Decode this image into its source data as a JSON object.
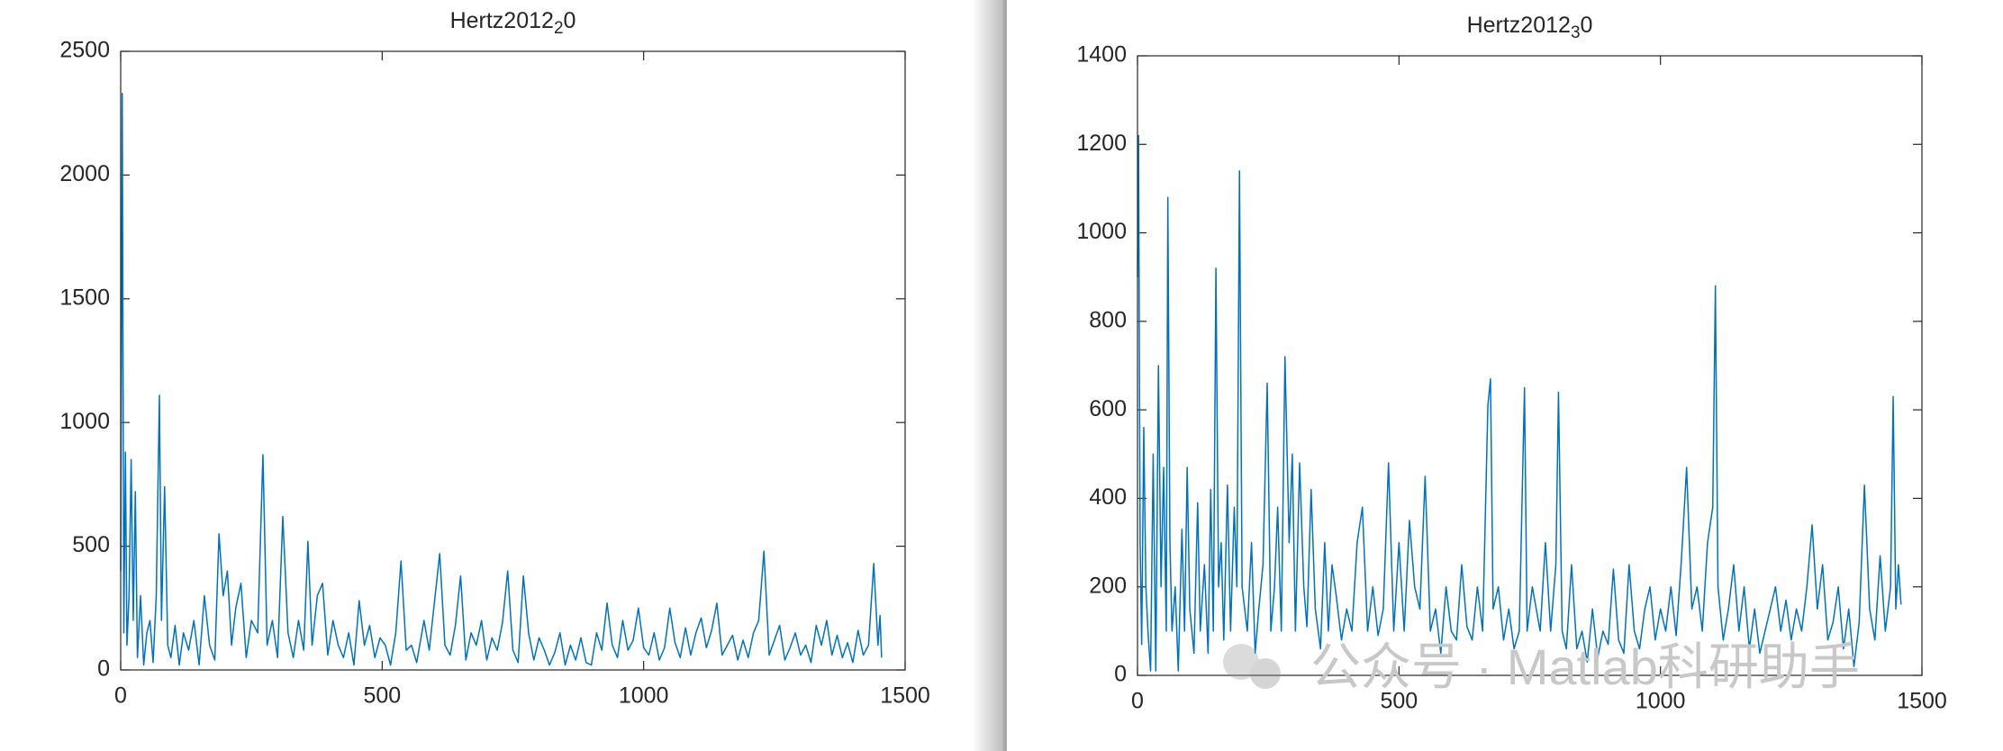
{
  "chart_data": [
    {
      "type": "line",
      "title": [
        "Hertz2012",
        "2",
        "0"
      ],
      "color": "#0072bd",
      "xlim": [
        0,
        1500
      ],
      "xticks": [
        0,
        500,
        1000,
        1500
      ],
      "ylim": [
        0,
        2500
      ],
      "yticks": [
        0,
        500,
        1000,
        1500,
        2000,
        2500
      ],
      "x": [
        0,
        3,
        6,
        9,
        12,
        16,
        20,
        24,
        28,
        32,
        38,
        44,
        50,
        56,
        62,
        68,
        74,
        78,
        84,
        90,
        96,
        104,
        112,
        120,
        130,
        140,
        150,
        160,
        170,
        180,
        188,
        196,
        204,
        212,
        220,
        230,
        240,
        250,
        262,
        272,
        280,
        290,
        300,
        310,
        320,
        330,
        340,
        350,
        358,
        366,
        376,
        386,
        396,
        406,
        416,
        426,
        436,
        446,
        456,
        466,
        476,
        486,
        496,
        506,
        516,
        526,
        536,
        546,
        556,
        566,
        580,
        590,
        610,
        620,
        630,
        640,
        650,
        660,
        670,
        680,
        690,
        700,
        710,
        720,
        730,
        740,
        750,
        760,
        770,
        780,
        790,
        800,
        810,
        820,
        830,
        840,
        850,
        860,
        870,
        880,
        890,
        900,
        910,
        920,
        930,
        940,
        950,
        960,
        970,
        980,
        990,
        1000,
        1010,
        1020,
        1030,
        1040,
        1050,
        1060,
        1070,
        1080,
        1090,
        1100,
        1110,
        1120,
        1130,
        1140,
        1150,
        1160,
        1170,
        1180,
        1190,
        1200,
        1210,
        1220,
        1230,
        1240,
        1250,
        1260,
        1270,
        1280,
        1290,
        1300,
        1310,
        1320,
        1330,
        1340,
        1350,
        1360,
        1370,
        1380,
        1390,
        1400,
        1410,
        1420,
        1430,
        1440,
        1448,
        1452,
        1455
      ],
      "values": [
        400,
        2330,
        150,
        880,
        100,
        300,
        850,
        200,
        720,
        50,
        300,
        20,
        150,
        200,
        30,
        300,
        1110,
        200,
        740,
        100,
        50,
        180,
        20,
        150,
        80,
        200,
        20,
        300,
        100,
        40,
        550,
        300,
        400,
        100,
        250,
        350,
        50,
        200,
        150,
        870,
        100,
        200,
        50,
        620,
        150,
        50,
        200,
        80,
        520,
        100,
        300,
        350,
        60,
        200,
        100,
        50,
        150,
        20,
        280,
        100,
        180,
        50,
        130,
        100,
        20,
        150,
        440,
        80,
        100,
        30,
        200,
        80,
        470,
        100,
        60,
        180,
        380,
        40,
        150,
        100,
        200,
        40,
        130,
        80,
        190,
        400,
        80,
        30,
        380,
        150,
        40,
        130,
        80,
        20,
        70,
        150,
        20,
        100,
        40,
        130,
        30,
        20,
        150,
        80,
        270,
        100,
        50,
        200,
        80,
        120,
        250,
        90,
        60,
        150,
        40,
        90,
        250,
        110,
        50,
        170,
        60,
        150,
        210,
        90,
        160,
        270,
        60,
        100,
        140,
        40,
        120,
        50,
        150,
        200,
        480,
        60,
        120,
        180,
        40,
        90,
        150,
        60,
        100,
        30,
        180,
        100,
        200,
        60,
        140,
        50,
        110,
        30,
        160,
        60,
        100,
        430,
        100,
        220,
        50
      ]
    },
    {
      "type": "line",
      "title": [
        "Hertz2012",
        "3",
        "0"
      ],
      "color": "#0072bd",
      "xlim": [
        0,
        1500
      ],
      "xticks": [
        0,
        500,
        1000,
        1500
      ],
      "ylim": [
        0,
        1400
      ],
      "yticks": [
        0,
        200,
        400,
        600,
        800,
        1000,
        1200,
        1400
      ],
      "x": [
        0,
        2,
        5,
        8,
        12,
        16,
        20,
        25,
        30,
        35,
        40,
        45,
        50,
        55,
        58,
        62,
        66,
        72,
        78,
        85,
        90,
        95,
        100,
        108,
        115,
        120,
        128,
        135,
        140,
        145,
        150,
        155,
        160,
        165,
        172,
        178,
        185,
        190,
        195,
        200,
        210,
        218,
        225,
        232,
        240,
        248,
        255,
        262,
        268,
        275,
        282,
        290,
        296,
        302,
        310,
        318,
        324,
        332,
        340,
        350,
        358,
        365,
        372,
        380,
        390,
        400,
        410,
        420,
        430,
        440,
        450,
        460,
        470,
        480,
        490,
        500,
        510,
        520,
        530,
        540,
        550,
        560,
        570,
        580,
        590,
        600,
        610,
        620,
        630,
        640,
        650,
        660,
        670,
        675,
        680,
        690,
        700,
        710,
        720,
        730,
        740,
        745,
        755,
        770,
        780,
        790,
        800,
        805,
        812,
        820,
        830,
        840,
        850,
        860,
        870,
        880,
        890,
        900,
        910,
        920,
        930,
        940,
        950,
        960,
        970,
        980,
        990,
        1000,
        1010,
        1020,
        1030,
        1040,
        1050,
        1060,
        1070,
        1080,
        1090,
        1100,
        1105,
        1110,
        1120,
        1130,
        1140,
        1150,
        1160,
        1170,
        1180,
        1190,
        1200,
        1210,
        1220,
        1230,
        1240,
        1250,
        1260,
        1270,
        1280,
        1290,
        1300,
        1310,
        1320,
        1330,
        1340,
        1350,
        1360,
        1370,
        1380,
        1390,
        1400,
        1410,
        1420,
        1430,
        1440,
        1445,
        1450,
        1455,
        1460
      ],
      "values": [
        900,
        1220,
        300,
        70,
        560,
        200,
        100,
        10,
        500,
        10,
        700,
        200,
        470,
        100,
        1080,
        300,
        100,
        200,
        10,
        330,
        100,
        470,
        150,
        50,
        390,
        100,
        250,
        50,
        420,
        100,
        920,
        200,
        300,
        80,
        430,
        100,
        380,
        200,
        1140,
        200,
        100,
        300,
        50,
        150,
        250,
        660,
        100,
        200,
        380,
        100,
        720,
        300,
        500,
        100,
        480,
        200,
        110,
        420,
        150,
        60,
        300,
        100,
        250,
        180,
        80,
        150,
        100,
        300,
        380,
        100,
        200,
        90,
        150,
        480,
        100,
        300,
        100,
        350,
        200,
        150,
        450,
        100,
        150,
        50,
        200,
        100,
        80,
        250,
        110,
        80,
        200,
        100,
        610,
        670,
        150,
        200,
        80,
        150,
        60,
        100,
        650,
        100,
        200,
        100,
        300,
        100,
        250,
        640,
        100,
        60,
        250,
        60,
        100,
        30,
        150,
        40,
        100,
        70,
        240,
        80,
        50,
        250,
        100,
        60,
        150,
        200,
        80,
        150,
        100,
        200,
        90,
        260,
        470,
        150,
        200,
        100,
        300,
        380,
        880,
        200,
        80,
        150,
        250,
        100,
        200,
        60,
        150,
        50,
        100,
        150,
        200,
        100,
        170,
        80,
        150,
        100,
        200,
        340,
        150,
        250,
        80,
        120,
        200,
        60,
        150,
        20,
        120,
        430,
        150,
        80,
        270,
        100,
        200,
        630,
        150,
        250,
        160
      ]
    }
  ],
  "watermark": "公众号 · Matlab科研助手"
}
